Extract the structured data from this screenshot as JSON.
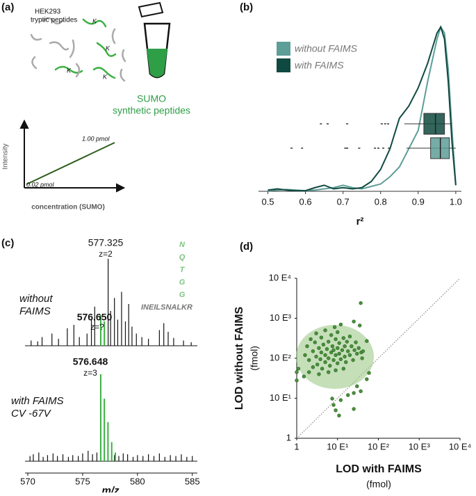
{
  "panel_labels": [
    "(a)",
    "(b)",
    "(c)",
    "(d)"
  ],
  "diagram": {
    "sample_label": [
      "HEK293",
      "tryptic peptides"
    ],
    "lysine_marks": [
      "K",
      "K",
      "K",
      "K"
    ],
    "standard_label": [
      "SUMO",
      "synthetic peptides"
    ],
    "curve": {
      "y_label": "Intensity",
      "x_label": "concentration (SUMO)",
      "high_label": "1.00 pmol",
      "low_label": "0.02 pmol"
    }
  },
  "chart_data": [
    {
      "type": "density",
      "xlabel": "r²",
      "legend": "upper left",
      "xlim": [
        0.475,
        1.015
      ],
      "ylim": [
        0,
        14
      ],
      "xticks": [
        0.5,
        0.6,
        0.7,
        0.8,
        0.9,
        {
          "value": 1,
          "label": "1.0"
        }
      ],
      "x": [
        0.5,
        0.525,
        0.55,
        0.575,
        0.6,
        0.625,
        0.65,
        0.675,
        0.7,
        0.725,
        0.75,
        0.775,
        0.8,
        0.825,
        0.85,
        0.875,
        0.9,
        0.925,
        0.95,
        0.96,
        0.97,
        0.98,
        0.99,
        1.0
      ],
      "series": [
        {
          "name": "without FAIMS",
          "color": "#5e9e98",
          "values": [
            0.05,
            0.1,
            0.15,
            0.1,
            0.05,
            0.1,
            0.2,
            0.3,
            0.5,
            0.3,
            0.2,
            0.4,
            0.6,
            1.2,
            2,
            3.5,
            5,
            9,
            12.5,
            13.5,
            13,
            10,
            5,
            0.5
          ],
          "box": {
            "whisker_low": 0.869,
            "q1": 0.933,
            "median": 0.959,
            "q3": 0.983,
            "whisker_high": 1.0,
            "outliers": [
              0.563,
              0.591,
              0.706,
              0.711,
              0.743,
              0.785,
              0.794,
              0.807,
              0.822
            ]
          }
        },
        {
          "name": "with FAIMS",
          "color": "#0f4a40",
          "values": [
            0.1,
            0.2,
            0.1,
            0.05,
            0.05,
            0.3,
            0.5,
            0.2,
            0.3,
            0.2,
            0.3,
            0.8,
            1.8,
            3.5,
            6,
            7,
            8.5,
            10.5,
            13,
            13.5,
            12.5,
            9,
            4,
            0.5
          ],
          "box": {
            "whisker_low": 0.863,
            "q1": 0.915,
            "median": 0.946,
            "q3": 0.97,
            "whisker_high": 0.99,
            "outliers": [
              0.641,
              0.659,
              0.711,
              0.803,
              0.812,
              0.82
            ]
          }
        }
      ]
    },
    {
      "type": "spectrum",
      "xlabel": "m/z",
      "xlim": [
        569.9,
        585.3
      ],
      "xticks": [
        570,
        575,
        580,
        585
      ],
      "ylim": [
        0,
        100
      ],
      "highlight_color": "#3cb043",
      "peptide": {
        "sequence": "INEILSNALKR",
        "branch": [
          "N",
          "Q",
          "T",
          "G",
          "G"
        ]
      },
      "spectra": [
        {
          "label": [
            "without",
            "FAIMS"
          ],
          "annotations": [
            [
              "577.325",
              "z=2"
            ],
            [
              "576.650",
              "z=?"
            ]
          ],
          "x": [
            570.3,
            570.9,
            571.3,
            572.2,
            572.8,
            573.6,
            574.2,
            574.7,
            575.4,
            575.8,
            576.1,
            577.325,
            577.55,
            577.9,
            578.2,
            578.55,
            578.9,
            579.2,
            579.5,
            579.9,
            580.4,
            581.0,
            582.0,
            582.4,
            582.8,
            583.3,
            584.2,
            584.9
          ],
          "values": [
            6,
            5,
            10,
            14,
            8,
            20,
            24,
            10,
            14,
            30,
            45,
            100,
            40,
            55,
            30,
            62,
            28,
            48,
            22,
            14,
            10,
            8,
            18,
            26,
            16,
            9,
            6,
            4
          ],
          "highlight_x": [
            576.65,
            576.98
          ],
          "highlight_values": [
            35,
            28
          ]
        },
        {
          "label": [
            "with FAIMS",
            "CV -67V"
          ],
          "annotations": [
            [
              "576.648",
              "z=3"
            ]
          ],
          "x": [
            570.2,
            570.5,
            571.0,
            571.4,
            571.8,
            572.3,
            572.7,
            573.2,
            573.7,
            574.1,
            574.6,
            575.0,
            575.5,
            575.9,
            576.3,
            577.9,
            578.3,
            578.7,
            579.1,
            579.6,
            580.0,
            580.5,
            581.0,
            581.5,
            582.0,
            582.5,
            583.0,
            583.5,
            584.0,
            584.5,
            585.0
          ],
          "values": [
            6,
            8,
            10,
            5,
            7,
            9,
            6,
            8,
            5,
            7,
            6,
            9,
            12,
            8,
            10,
            7,
            6,
            9,
            8,
            5,
            7,
            6,
            8,
            6,
            9,
            5,
            7,
            6,
            8,
            5,
            6
          ],
          "highlight_x": [
            576.648,
            576.98,
            577.31,
            577.65,
            577.98
          ],
          "highlight_values": [
            100,
            72,
            45,
            22,
            10
          ]
        }
      ]
    },
    {
      "type": "scatter",
      "log_scale": true,
      "diagonal": true,
      "color": "#4a8f3c",
      "xlabel": "LOD with FAIMS",
      "xunit": "(fmol)",
      "ylabel": "LOD without FAIMS",
      "yunit": "(fmol)",
      "xlim": [
        1,
        10000
      ],
      "ylim": [
        1,
        10000
      ],
      "xticks": [
        1,
        {
          "value": 10,
          "label": "10 E¹"
        },
        {
          "value": 100,
          "label": "10 E²"
        },
        {
          "value": 1000,
          "label": "10 E³"
        },
        {
          "value": 10000,
          "label": "10 E⁴"
        }
      ],
      "yticks": [
        1,
        {
          "value": 10,
          "label": "10 E¹"
        },
        {
          "value": 100,
          "label": "10 E²"
        },
        {
          "value": 1000,
          "label": "10 E³"
        },
        {
          "value": 10000,
          "label": "10 E⁴"
        }
      ],
      "x": [
        1,
        1,
        1.1,
        7.4,
        8,
        9,
        10.9,
        25,
        25,
        37,
        52,
        59,
        25,
        37,
        35,
        52,
        12,
        18,
        30,
        1.6,
        1.8,
        2,
        2.2,
        2.5,
        2.5,
        2.8,
        3,
        3,
        3.2,
        3.5,
        3.8,
        4,
        4,
        4.2,
        4.5,
        5,
        5,
        5,
        5.5,
        6,
        6,
        6.5,
        7,
        7,
        7.5,
        8,
        8,
        8.5,
        9,
        9,
        10,
        10,
        10,
        11,
        11,
        12,
        12,
        13,
        14,
        15,
        15,
        16,
        17,
        18,
        20,
        20,
        22,
        24,
        26,
        28,
        30,
        33,
        38,
        42,
        2,
        3.5,
        1.5,
        6,
        9,
        14,
        40
      ],
      "values": [
        45,
        28,
        55,
        9.8,
        6.8,
        5,
        3.7,
        5.4,
        13.5,
        15,
        30,
        43,
        830,
        2400,
        660,
        270,
        9,
        12,
        20,
        120,
        200,
        90,
        300,
        150,
        60,
        250,
        110,
        420,
        70,
        180,
        95,
        330,
        140,
        55,
        220,
        120,
        80,
        500,
        170,
        260,
        100,
        65,
        140,
        380,
        200,
        90,
        160,
        600,
        120,
        300,
        75,
        180,
        450,
        130,
        240,
        95,
        700,
        160,
        320,
        110,
        200,
        80,
        260,
        150,
        350,
        120,
        200,
        90,
        160,
        250,
        130,
        180,
        140,
        150,
        45,
        40,
        35,
        45,
        50,
        55,
        100
      ]
    }
  ]
}
